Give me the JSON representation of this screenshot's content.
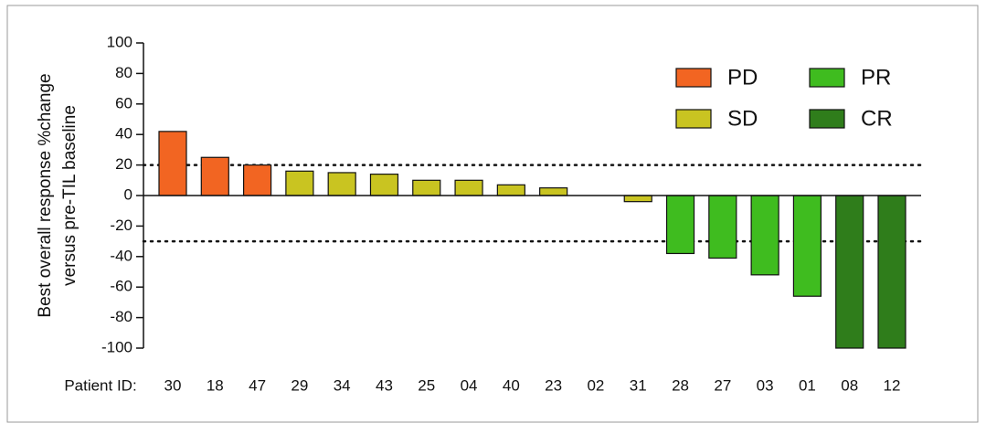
{
  "chart_data": {
    "type": "bar",
    "xlabel": "Patient ID:",
    "ylabel": [
      "Best overall response %change",
      "versus pre-TIL baseline"
    ],
    "categories": [
      "30",
      "18",
      "47",
      "29",
      "34",
      "43",
      "25",
      "04",
      "40",
      "23",
      "02",
      "31",
      "28",
      "27",
      "03",
      "01",
      "08",
      "12"
    ],
    "series": [
      {
        "name": "PD",
        "color": "#f26522",
        "values": [
          42,
          25,
          20,
          null,
          null,
          null,
          null,
          null,
          null,
          null,
          null,
          null,
          null,
          null,
          null,
          null,
          null,
          null
        ]
      },
      {
        "name": "SD",
        "color": "#c9c421",
        "values": [
          null,
          null,
          null,
          16,
          15,
          14,
          10,
          10,
          7,
          5,
          0,
          -4,
          null,
          null,
          null,
          null,
          null,
          null
        ]
      },
      {
        "name": "PR",
        "color": "#3fbc1f",
        "values": [
          null,
          null,
          null,
          null,
          null,
          null,
          null,
          null,
          null,
          null,
          null,
          null,
          -38,
          -41,
          -52,
          -66,
          null,
          null
        ]
      },
      {
        "name": "CR",
        "color": "#2f7d1b",
        "values": [
          null,
          null,
          null,
          null,
          null,
          null,
          null,
          null,
          null,
          null,
          null,
          null,
          null,
          null,
          null,
          null,
          -100,
          -100
        ]
      }
    ],
    "ylim": [
      -100,
      100
    ],
    "yticks": [
      -100,
      -80,
      -60,
      -40,
      -20,
      0,
      20,
      40,
      60,
      80,
      100
    ],
    "reference_lines": [
      20,
      -30
    ],
    "legend": "upper right"
  }
}
